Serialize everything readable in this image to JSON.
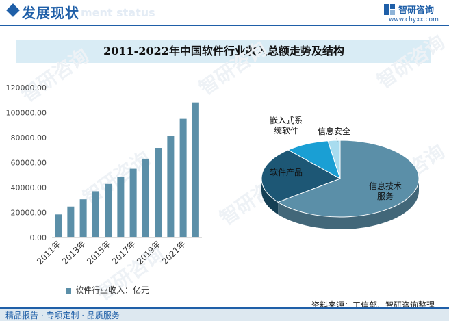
{
  "header": {
    "title": "发展现状",
    "subtitle_watermark": "ment status",
    "brand": "智研咨询",
    "url": "www.chyxx.com"
  },
  "chart_title": "2011-2022年中国软件行业收入总额走势及结构",
  "chart_data": [
    {
      "type": "bar",
      "categories": [
        "2011年",
        "2012年",
        "2013年",
        "2014年",
        "2015年",
        "2016年",
        "2017年",
        "2018年",
        "2019年",
        "2020年",
        "2021年",
        "2022年"
      ],
      "tick_labels_shown": [
        "2011年",
        "2013年",
        "2015年",
        "2017年",
        "2019年",
        "2021年"
      ],
      "series": [
        {
          "name": "软件行业收入：亿元",
          "values": [
            18468,
            24794,
            30587,
            37026,
            42848,
            48232,
            55037,
            63061,
            71768,
            81616,
            94994,
            108126
          ]
        }
      ],
      "ylim": [
        0,
        120000
      ],
      "yticks": [
        "0.00",
        "20000.00",
        "40000.00",
        "60000.00",
        "80000.00",
        "100000.00",
        "120000.00"
      ],
      "grid": false,
      "legend_position": "bottom",
      "color": "#5b8fa8"
    },
    {
      "type": "pie",
      "style": "3d",
      "slices": [
        {
          "label": "信息技术服务",
          "value": 64.5,
          "color": "#5b8fa8"
        },
        {
          "label": "软件产品",
          "value": 24.0,
          "color": "#1d5775"
        },
        {
          "label": "嵌入式系统软件",
          "value": 9.0,
          "color": "#1a9fd4"
        },
        {
          "label": "信息安全",
          "value": 2.5,
          "color": "#a8dcef"
        }
      ]
    }
  ],
  "watermark": "智研咨询",
  "source": "资料来源：工信部、智研咨询整理",
  "footer": "精品报告 · 专项定制 · 品质服务"
}
